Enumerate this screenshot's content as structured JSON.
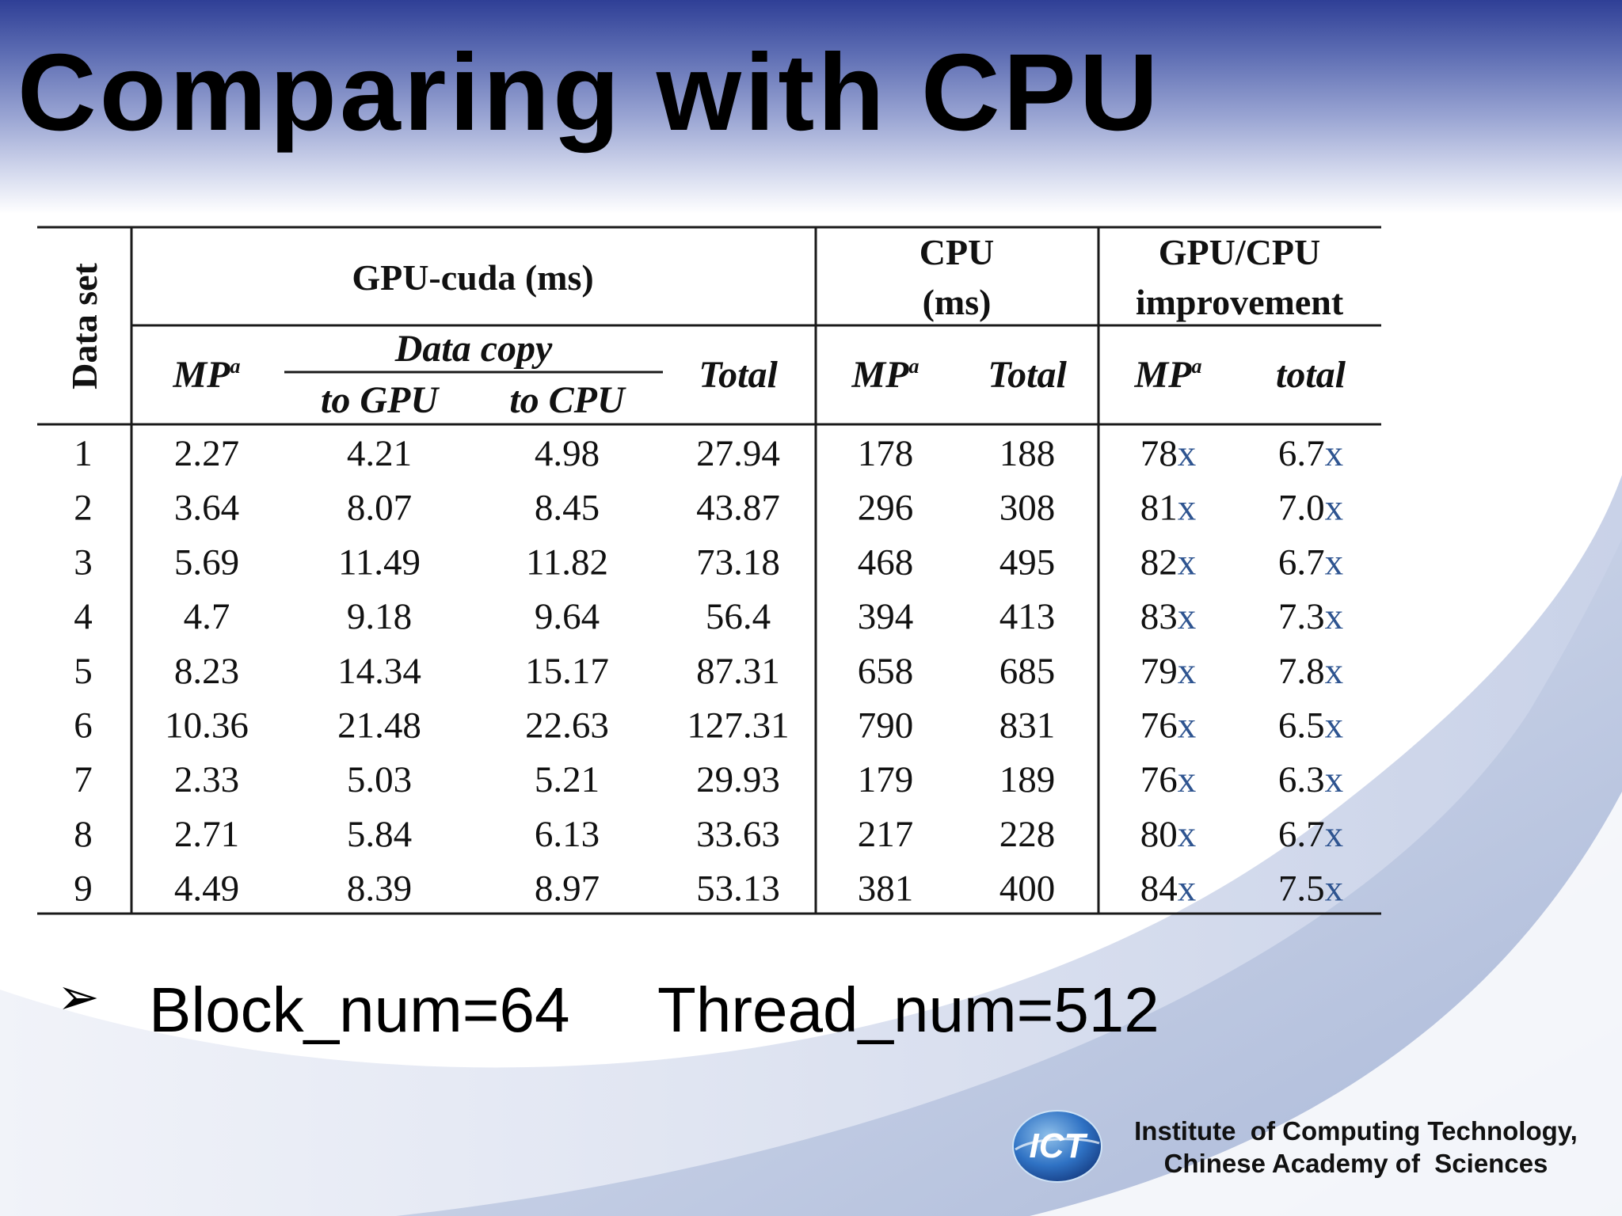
{
  "slide": {
    "title": "Comparing with CPU",
    "bullet_symbol": "➢",
    "params": [
      "Block_num=64",
      "Thread_num=512"
    ],
    "institute_line1": "Institute  of Computing Technology,",
    "institute_line2": "Chinese Academy of  Sciences",
    "logo_text": "ICT",
    "accent_color": "#2f3f96"
  },
  "table": {
    "headers": {
      "dataset": "Data set",
      "gpu_group": "GPU-cuda (ms)",
      "cpu_group_line1": "CPU",
      "cpu_group_line2": "(ms)",
      "improvement_line1": "GPU/CPU",
      "improvement_line2": "improvement",
      "gpu_mp": "MP",
      "data_copy": "Data copy",
      "to_gpu": "to GPU",
      "to_cpu": "to CPU",
      "gpu_total": "Total",
      "cpu_mp": "MP",
      "cpu_total": "Total",
      "imp_mp": "MP",
      "imp_total": "total",
      "superscript": "a"
    },
    "rows": [
      {
        "set": "1",
        "gpu_mp": "2.27",
        "to_gpu": "4.21",
        "to_cpu": "4.98",
        "gpu_total": "27.94",
        "cpu_mp": "178",
        "cpu_total": "188",
        "imp_mp": "78",
        "imp_total": "6.7"
      },
      {
        "set": "2",
        "gpu_mp": "3.64",
        "to_gpu": "8.07",
        "to_cpu": "8.45",
        "gpu_total": "43.87",
        "cpu_mp": "296",
        "cpu_total": "308",
        "imp_mp": "81",
        "imp_total": "7.0"
      },
      {
        "set": "3",
        "gpu_mp": "5.69",
        "to_gpu": "11.49",
        "to_cpu": "11.82",
        "gpu_total": "73.18",
        "cpu_mp": "468",
        "cpu_total": "495",
        "imp_mp": "82",
        "imp_total": "6.7"
      },
      {
        "set": "4",
        "gpu_mp": "4.7",
        "to_gpu": "9.18",
        "to_cpu": "9.64",
        "gpu_total": "56.4",
        "cpu_mp": "394",
        "cpu_total": "413",
        "imp_mp": "83",
        "imp_total": "7.3"
      },
      {
        "set": "5",
        "gpu_mp": "8.23",
        "to_gpu": "14.34",
        "to_cpu": "15.17",
        "gpu_total": "87.31",
        "cpu_mp": "658",
        "cpu_total": "685",
        "imp_mp": "79",
        "imp_total": "7.8"
      },
      {
        "set": "6",
        "gpu_mp": "10.36",
        "to_gpu": "21.48",
        "to_cpu": "22.63",
        "gpu_total": "127.31",
        "cpu_mp": "790",
        "cpu_total": "831",
        "imp_mp": "76",
        "imp_total": "6.5"
      },
      {
        "set": "7",
        "gpu_mp": "2.33",
        "to_gpu": "5.03",
        "to_cpu": "5.21",
        "gpu_total": "29.93",
        "cpu_mp": "179",
        "cpu_total": "189",
        "imp_mp": "76",
        "imp_total": "6.3"
      },
      {
        "set": "8",
        "gpu_mp": "2.71",
        "to_gpu": "5.84",
        "to_cpu": "6.13",
        "gpu_total": "33.63",
        "cpu_mp": "217",
        "cpu_total": "228",
        "imp_mp": "80",
        "imp_total": "6.7"
      },
      {
        "set": "9",
        "gpu_mp": "4.49",
        "to_gpu": "8.39",
        "to_cpu": "8.97",
        "gpu_total": "53.13",
        "cpu_mp": "381",
        "cpu_total": "400",
        "imp_mp": "84",
        "imp_total": "7.5"
      }
    ],
    "x_suffix": "x"
  }
}
